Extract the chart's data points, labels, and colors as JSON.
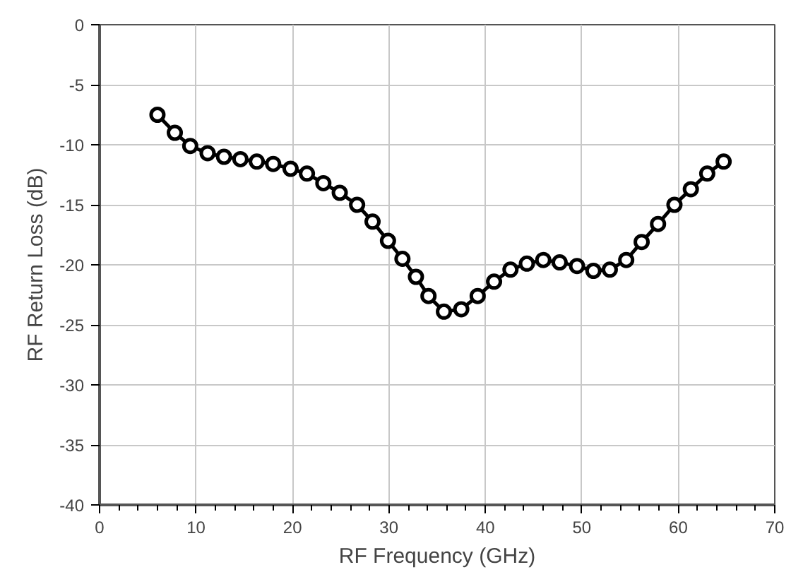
{
  "chart_data": {
    "type": "line",
    "xlabel": "RF Frequency (GHz)",
    "ylabel": "RF Return Loss (dB)",
    "x": [
      6.0,
      7.8,
      9.4,
      11.2,
      12.9,
      14.6,
      16.3,
      18.0,
      19.8,
      21.5,
      23.2,
      24.9,
      26.7,
      28.3,
      29.9,
      31.4,
      32.8,
      34.1,
      35.7,
      37.5,
      39.2,
      40.9,
      42.6,
      44.3,
      46.0,
      47.7,
      49.5,
      51.2,
      52.9,
      54.6,
      56.2,
      57.9,
      59.6,
      61.3,
      63.0,
      64.7
    ],
    "series": [
      {
        "color": "#000000",
        "values": [
          -7.5,
          -9.0,
          -10.1,
          -10.7,
          -11.0,
          -11.2,
          -11.4,
          -11.6,
          -12.0,
          -12.4,
          -13.2,
          -14.0,
          -15.0,
          -16.4,
          -18.0,
          -19.5,
          -21.0,
          -22.6,
          -23.9,
          -23.7,
          -22.6,
          -21.4,
          -20.4,
          -19.9,
          -19.6,
          -19.8,
          -20.1,
          -20.5,
          -20.4,
          -19.6,
          -18.1,
          -16.6,
          -15.0,
          -13.7,
          -12.4,
          -11.4
        ]
      }
    ],
    "xlim": [
      0,
      70
    ],
    "xticks": [
      0,
      10,
      20,
      30,
      40,
      50,
      60,
      70
    ],
    "ylim": [
      -40,
      0
    ],
    "yticks": [
      -40,
      -35,
      -30,
      -25,
      -20,
      -15,
      -10,
      -5,
      0
    ],
    "grid": true,
    "marker": "circle",
    "line_style": "solid"
  }
}
